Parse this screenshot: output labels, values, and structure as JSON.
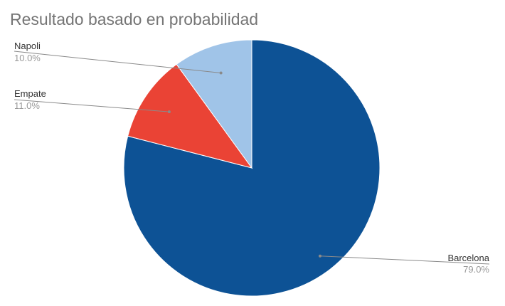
{
  "chart_data": {
    "type": "pie",
    "title": "Resultado basado en probabilidad",
    "slices": [
      {
        "label": "Barcelona",
        "value": 79.0,
        "display": "79.0%",
        "color": "#0d5295"
      },
      {
        "label": "Empate",
        "value": 11.0,
        "display": "11.0%",
        "color": "#ea4335"
      },
      {
        "label": "Napoli",
        "value": 10.0,
        "display": "10.0%",
        "color": "#a0c4e8"
      }
    ],
    "start": "12 o'clock",
    "direction": "clockwise",
    "legend": "none",
    "label_style": "callout lines with label and percentage"
  }
}
